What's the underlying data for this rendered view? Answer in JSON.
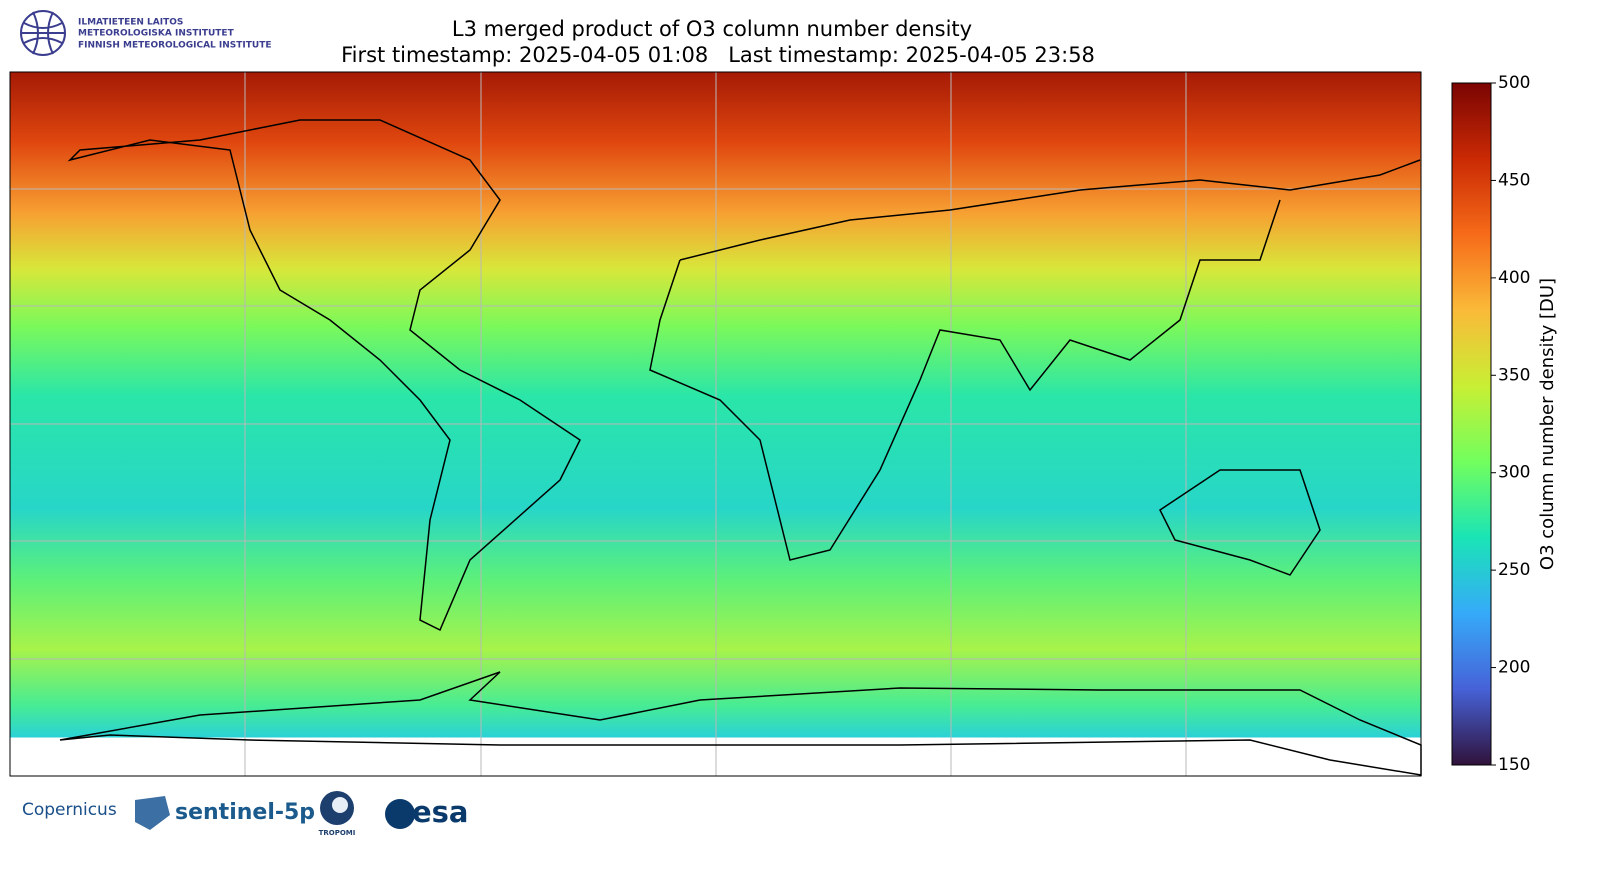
{
  "header": {
    "logo_lines": [
      "ILMATIETEEN LAITOS",
      "METEOROLOGISKA INSTITUTET",
      "FINNISH METEOROLOGICAL INSTITUTE"
    ]
  },
  "chart_data": {
    "type": "map",
    "title": "L3 merged product of O3 column number density",
    "subtitle": "First timestamp: 2025-04-05 01:08   Last timestamp: 2025-04-05 23:58",
    "colorbar": {
      "label": "O3 column number density [DU]",
      "lim": [
        150,
        500
      ],
      "ticks": [
        150,
        200,
        250,
        300,
        350,
        400,
        450,
        500
      ],
      "colors": [
        "#30123b",
        "#4662d7",
        "#36aaf9",
        "#1ae4b6",
        "#72fe5e",
        "#c8ef34",
        "#faba39",
        "#f66b19",
        "#ca2a04",
        "#7a0403"
      ]
    }
  },
  "footer": {
    "logos": [
      "Copernicus",
      "sentinel-5p",
      "TROPOMI",
      "esa"
    ]
  }
}
